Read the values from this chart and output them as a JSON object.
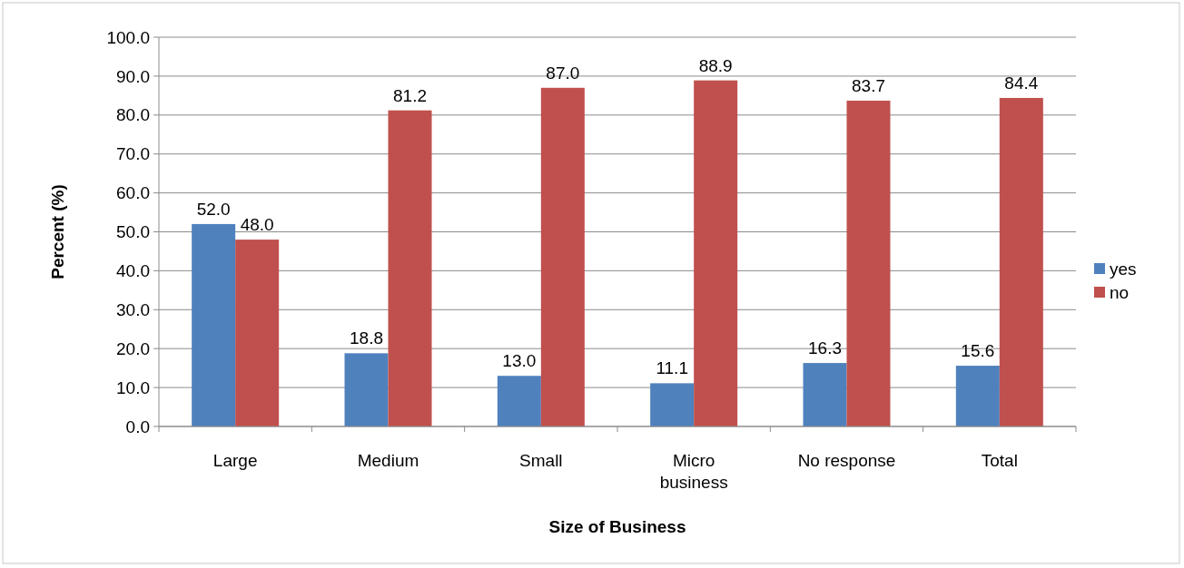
{
  "chart_data": {
    "type": "bar",
    "xlabel": "Size of Business",
    "ylabel": "Percent (%)",
    "categories": [
      "Large",
      "Medium",
      "Small",
      "Micro business",
      "No response",
      "Total"
    ],
    "series": [
      {
        "name": "yes",
        "color": "#4f81bd",
        "values": [
          52.0,
          18.8,
          13.0,
          11.1,
          16.3,
          15.6
        ],
        "value_labels": [
          "52.0",
          "18.8",
          "13.0",
          "11.1",
          "16.3",
          "15.6"
        ]
      },
      {
        "name": "no",
        "color": "#c0504d",
        "values": [
          48.0,
          81.2,
          87.0,
          88.9,
          83.7,
          84.4
        ],
        "value_labels": [
          "48.0",
          "81.2",
          "87.0",
          "88.9",
          "83.7",
          "84.4"
        ]
      }
    ],
    "ylim": [
      0,
      100
    ],
    "yticks": [
      {
        "value": 0,
        "label": "0.0"
      },
      {
        "value": 10,
        "label": "10.0"
      },
      {
        "value": 20,
        "label": "20.0"
      },
      {
        "value": 30,
        "label": "30.0"
      },
      {
        "value": 40,
        "label": "40.0"
      },
      {
        "value": 50,
        "label": "50.0"
      },
      {
        "value": 60,
        "label": "60.0"
      },
      {
        "value": 70,
        "label": "70.0"
      },
      {
        "value": 80,
        "label": "80.0"
      },
      {
        "value": 90,
        "label": "90.0"
      },
      {
        "value": 100,
        "label": "100.0"
      }
    ],
    "grid": "y",
    "legend": "right"
  }
}
